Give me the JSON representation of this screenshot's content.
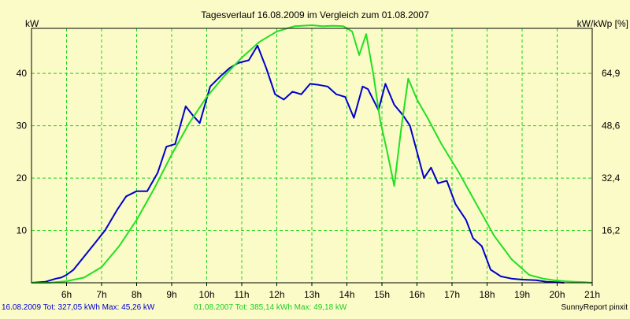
{
  "colors": {
    "background": "#fbfbc8",
    "grid": "#1fd41f",
    "series_2009": "#0000cc",
    "series_2007": "#22e022",
    "text": "#000000"
  },
  "chart_data": {
    "type": "line",
    "title": "Tagesverlauf 16.08.2009 im Vergleich zum 01.08.2007",
    "ylabel_left": "kW",
    "ylabel_right": "kW/kWp [%]",
    "x_range": [
      5.0,
      21.0
    ],
    "y_range": [
      0,
      48.6
    ],
    "y_ticks": [
      10,
      20,
      30,
      40
    ],
    "y_right_ticks": [
      "16,2",
      "32,4",
      "48,6",
      "64,9"
    ],
    "x_tick_labels": [
      "6h",
      "7h",
      "8h",
      "9h",
      "10h",
      "11h",
      "12h",
      "13h",
      "14h",
      "15h",
      "16h",
      "17h",
      "18h",
      "19h",
      "20h",
      "21h"
    ],
    "grid": true,
    "series": [
      {
        "name": "16.08.2009",
        "color": "#0000cc",
        "x": [
          5.0,
          5.4,
          5.7,
          5.85,
          6.0,
          6.2,
          6.5,
          6.8,
          7.1,
          7.45,
          7.7,
          8.0,
          8.3,
          8.6,
          8.85,
          9.1,
          9.4,
          9.6,
          9.8,
          10.1,
          10.4,
          10.65,
          10.9,
          11.2,
          11.45,
          11.7,
          11.95,
          12.2,
          12.45,
          12.7,
          12.95,
          13.2,
          13.45,
          13.7,
          13.95,
          14.2,
          14.45,
          14.6,
          14.9,
          15.1,
          15.35,
          15.6,
          15.8,
          16.0,
          16.2,
          16.4,
          16.6,
          16.85,
          17.1,
          17.4,
          17.6,
          17.85,
          18.1,
          18.4,
          18.7,
          19.0,
          19.4,
          19.7,
          19.95,
          20.2
        ],
        "y": [
          0,
          0.2,
          0.8,
          1.0,
          1.5,
          2.5,
          5.0,
          7.5,
          10.0,
          14.0,
          16.5,
          17.5,
          17.5,
          21.0,
          26.0,
          26.5,
          33.7,
          32.0,
          30.5,
          37.5,
          39.5,
          41.0,
          42.0,
          42.5,
          45.3,
          41.0,
          36.0,
          35.0,
          36.5,
          36.0,
          38.0,
          37.8,
          37.5,
          36.0,
          35.5,
          31.5,
          37.5,
          37.0,
          33.0,
          38.0,
          34.0,
          32.0,
          30.0,
          25.0,
          20.0,
          22.0,
          19.0,
          19.5,
          15.0,
          12.0,
          8.5,
          7.0,
          2.5,
          1.2,
          0.8,
          0.6,
          0.5,
          0.2,
          0.1,
          0
        ]
      },
      {
        "name": "01.08.2007",
        "color": "#22e022",
        "x": [
          5.0,
          5.5,
          6.0,
          6.5,
          7.0,
          7.5,
          8.0,
          8.5,
          9.0,
          9.5,
          10.0,
          10.5,
          11.0,
          11.5,
          12.0,
          12.5,
          13.0,
          13.3,
          13.6,
          13.9,
          14.15,
          14.35,
          14.55,
          14.75,
          14.95,
          15.15,
          15.35,
          15.55,
          15.75,
          16.0,
          16.3,
          16.7,
          17.2,
          17.7,
          18.2,
          18.7,
          19.2,
          19.6,
          19.9,
          20.2,
          20.5,
          20.8,
          21.0
        ],
        "y": [
          0,
          0,
          0.3,
          1.0,
          3.0,
          7.0,
          12.0,
          18.0,
          24.5,
          30.5,
          35.5,
          39.5,
          43.0,
          46.0,
          48.0,
          49.0,
          49.2,
          49.0,
          49.1,
          49.0,
          48.0,
          43.5,
          47.5,
          40.0,
          31.0,
          25.0,
          18.5,
          29.5,
          39.0,
          35.0,
          31.5,
          26.5,
          21.0,
          15.0,
          9.0,
          4.5,
          1.5,
          0.8,
          0.5,
          0.3,
          0.2,
          0.1,
          0
        ]
      }
    ]
  },
  "footer": {
    "legend_2009": "16.08.2009 Tot: 327,05 kWh Max: 45,26 kW",
    "legend_2007": "01.08.2007 Tot: 385,14 kWh Max: 49,18 kW",
    "credit": "SunnyReport pinxit"
  }
}
